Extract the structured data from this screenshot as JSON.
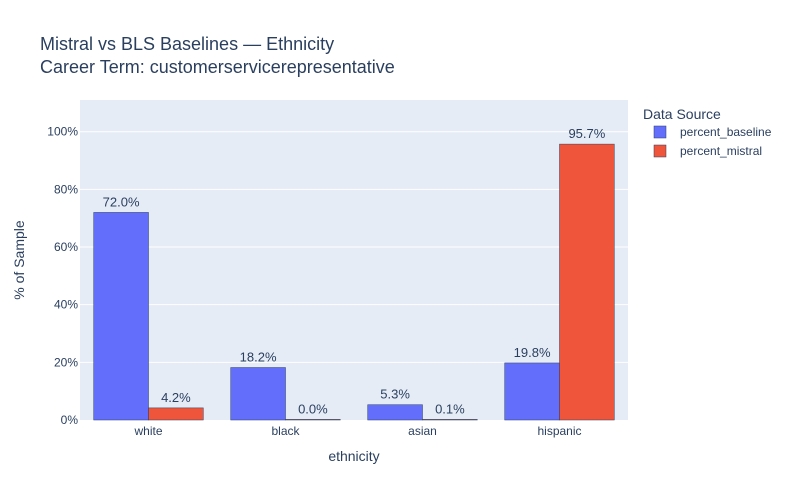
{
  "chart_data": {
    "type": "bar",
    "title": "Mistral vs BLS Baselines — Ethnicity",
    "subtitle": "Career Term: customerservicerepresentative",
    "xlabel": "ethnicity",
    "ylabel": "% of Sample",
    "categories": [
      "white",
      "black",
      "asian",
      "hispanic"
    ],
    "series": [
      {
        "name": "percent_baseline",
        "values": [
          72.0,
          18.2,
          5.3,
          19.8
        ],
        "labels": [
          "72.0%",
          "18.2%",
          "5.3%",
          "19.8%"
        ],
        "color": "#636efa"
      },
      {
        "name": "percent_mistral",
        "values": [
          4.2,
          0.0,
          0.1,
          95.7
        ],
        "labels": [
          "4.2%",
          "0.0%",
          "0.1%",
          "95.7%"
        ],
        "color": "#ef553b"
      }
    ],
    "ylim": [
      0,
      111
    ],
    "yticks": [
      0,
      20,
      40,
      60,
      80,
      100
    ],
    "ytick_labels": [
      "0%",
      "20%",
      "40%",
      "60%",
      "80%",
      "100%"
    ],
    "grid": true,
    "legend": {
      "title": "Data Source",
      "placement": "right"
    },
    "colors": {
      "plot_bg": "#e5ecf6",
      "grid": "#ffffff",
      "text": "#2a3f5f",
      "bar_outline": "#2a3f5f"
    }
  }
}
